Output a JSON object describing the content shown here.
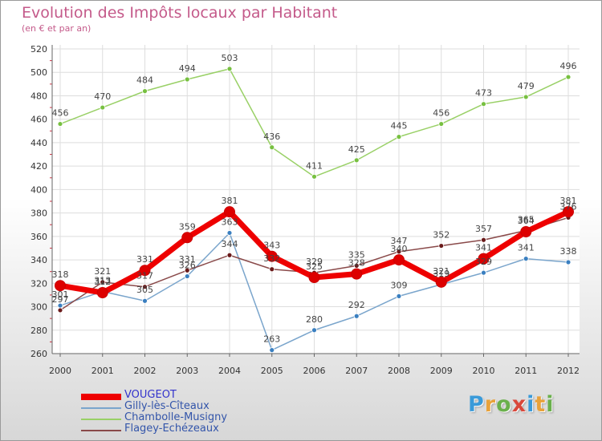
{
  "title": "Evolution des Impôts locaux par Habitant",
  "subtitle": "(en € et par an)",
  "logo": {
    "text": [
      "P",
      "r",
      "o",
      "x",
      "i",
      "t",
      "i"
    ],
    "colors": [
      "#3a9ad9",
      "#e8a23a",
      "#6ab04c",
      "#d9473a",
      "#3a9ad9",
      "#e8a23a",
      "#6ab04c"
    ]
  },
  "chart_data": {
    "type": "line",
    "categories": [
      "2000",
      "2001",
      "2002",
      "2003",
      "2004",
      "2005",
      "2006",
      "2007",
      "2008",
      "2009",
      "2010",
      "2011",
      "2012"
    ],
    "ylim": [
      260,
      520
    ],
    "yticks": [
      260,
      280,
      300,
      320,
      340,
      360,
      380,
      400,
      420,
      440,
      460,
      480,
      500,
      520
    ],
    "grid": true,
    "series": [
      {
        "name": "VOUGEOT",
        "color": "#ee0000",
        "dot": "#dd0000",
        "width": 7,
        "r": 6.5,
        "label_dy": -10,
        "values": [
          318,
          312,
          331,
          359,
          381,
          343,
          325,
          328,
          340,
          321,
          341,
          364,
          381
        ]
      },
      {
        "name": "Gilly-lès-Cîteaux",
        "color": "#7aa5cc",
        "dot": "#3a7fc0",
        "width": 1.5,
        "r": 3,
        "label_dy": -10,
        "values": [
          301,
          313,
          305,
          326,
          363,
          263,
          280,
          292,
          309,
          319,
          329,
          341,
          338
        ]
      },
      {
        "name": "Chambolle-Musigny",
        "color": "#99d066",
        "dot": "#77c040",
        "width": 1.5,
        "r": 3,
        "label_dy": -10,
        "values": [
          456,
          470,
          484,
          494,
          503,
          436,
          411,
          425,
          445,
          456,
          473,
          479,
          496
        ]
      },
      {
        "name": "Flagey-Echézeaux",
        "color": "#8a4a4a",
        "dot": "#6a1a1a",
        "width": 1.5,
        "r": 3,
        "label_dy": -10,
        "values": [
          297,
          321,
          317,
          331,
          344,
          332,
          329,
          335,
          347,
          352,
          357,
          365,
          376
        ]
      }
    ]
  }
}
